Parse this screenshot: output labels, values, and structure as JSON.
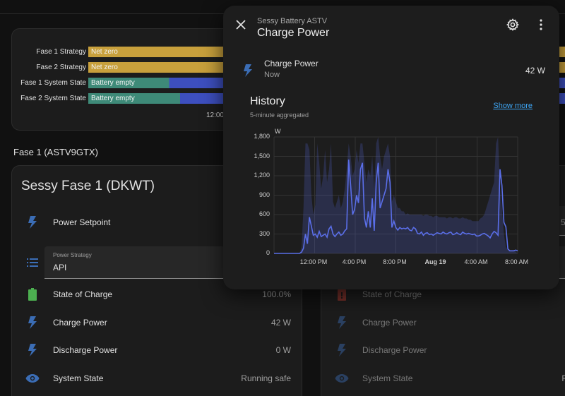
{
  "timeline": {
    "rows": [
      {
        "label": "Fase 1 Strategy",
        "text": "Net zero"
      },
      {
        "label": "Fase 2  Strategy",
        "text": "Net zero"
      },
      {
        "label": "Fase 1 System State",
        "text": "Battery empty"
      },
      {
        "label": "Fase 2 System State",
        "text": "Battery empty"
      }
    ],
    "time_tick": "12:00",
    "colors": {
      "strategy": "#c8a03c",
      "battery_empty": "#3e8a78",
      "other_state": "#3d4fbf"
    }
  },
  "section_title": "Fase 1 (ASTV9GTX)",
  "left_card": {
    "title": "Sessy Fase 1 (DKWT)",
    "power_setpoint_label": "Power Setpoint",
    "power_strategy": {
      "label": "Power Strategy",
      "value": "API"
    },
    "entities": [
      {
        "name": "State of Charge",
        "value": "100.0%",
        "icon": "battery-full-icon"
      },
      {
        "name": "Charge Power",
        "value": "42 W",
        "icon": "lightning-icon"
      },
      {
        "name": "Discharge Power",
        "value": "0 W",
        "icon": "lightning-icon"
      },
      {
        "name": "System State",
        "value": "Running safe",
        "icon": "eye-icon"
      }
    ]
  },
  "right_card": {
    "partial_value": "5",
    "entities": [
      {
        "name": "State of Charge",
        "icon": "battery-alert-icon"
      },
      {
        "name": "Charge Power",
        "icon": "lightning-icon"
      },
      {
        "name": "Discharge Power",
        "icon": "lightning-icon"
      },
      {
        "name": "System State",
        "value": "R",
        "icon": "eye-icon"
      }
    ]
  },
  "dialog": {
    "subtitle": "Sessy Battery ASTV",
    "title": "Charge Power",
    "state": {
      "name": "Charge Power",
      "time": "Now",
      "value": "42 W"
    },
    "history": {
      "title": "History",
      "subtitle": "5-minute aggregated",
      "show_more": "Show more"
    }
  },
  "chart_data": {
    "type": "line",
    "y_unit": "W",
    "ylim": [
      0,
      1800
    ],
    "yticks": [
      "1,800",
      "1,500",
      "1,200",
      "900",
      "600",
      "300",
      "0"
    ],
    "xticks": [
      "12:00 PM",
      "4:00 PM",
      "8:00 PM",
      "Aug 19",
      "4:00 AM",
      "8:00 AM"
    ],
    "grid": true,
    "color": "#5a6ee8",
    "series": [
      {
        "values": [
          0,
          0,
          0,
          0,
          0,
          0,
          0,
          0,
          0,
          0,
          0,
          0,
          0,
          0,
          20,
          80,
          300,
          150,
          560,
          420,
          280,
          300,
          250,
          340,
          260,
          280,
          300,
          250,
          380,
          420,
          300,
          260,
          300,
          330,
          280,
          300,
          350,
          380,
          1450,
          1050,
          600,
          680,
          900,
          780,
          1300,
          1400,
          550,
          400,
          650,
          400,
          850,
          350,
          1100,
          1400,
          700,
          800,
          900,
          1000,
          1300,
          1100,
          400,
          500,
          400,
          360,
          400,
          380,
          390,
          380,
          400,
          360,
          350,
          400,
          380,
          310,
          300,
          330,
          280,
          310,
          320,
          290,
          300,
          280,
          300,
          320,
          310,
          300,
          330,
          310,
          300,
          320,
          330,
          290,
          300,
          320,
          300,
          290,
          330,
          310,
          300,
          310,
          300,
          290,
          300,
          270,
          270,
          280,
          300,
          310,
          290,
          270,
          240,
          300,
          340,
          320,
          280,
          1300,
          1050,
          480,
          410,
          70,
          40,
          40,
          40,
          50,
          40
        ],
        "max_values": [
          0,
          0,
          0,
          0,
          0,
          0,
          0,
          0,
          0,
          0,
          0,
          0,
          0,
          0,
          100,
          700,
          1700,
          1700,
          1600,
          900,
          600,
          750,
          1700,
          1400,
          1000,
          1200,
          1600,
          1100,
          1300,
          1700,
          800,
          700,
          800,
          900,
          700,
          800,
          1000,
          1300,
          1700,
          1500,
          1200,
          1300,
          1600,
          1400,
          1700,
          1700,
          1400,
          1100,
          1300,
          1200,
          1500,
          1000,
          1700,
          1800,
          1500,
          1300,
          1500,
          1600,
          1700,
          1500,
          800,
          900,
          800,
          700,
          700,
          650,
          650,
          600,
          620,
          600,
          600,
          600,
          600,
          600,
          600,
          600,
          580,
          600,
          600,
          580,
          580,
          560,
          580,
          580,
          560,
          560,
          560,
          560,
          540,
          560,
          560,
          540,
          560,
          560,
          540,
          540,
          560,
          540,
          540,
          520,
          520,
          500,
          500,
          500,
          500,
          540,
          560,
          600,
          700,
          800,
          900,
          1000,
          1100,
          1700,
          1800,
          1000,
          700,
          300,
          100,
          50,
          50,
          50,
          50
        ]
      }
    ]
  }
}
